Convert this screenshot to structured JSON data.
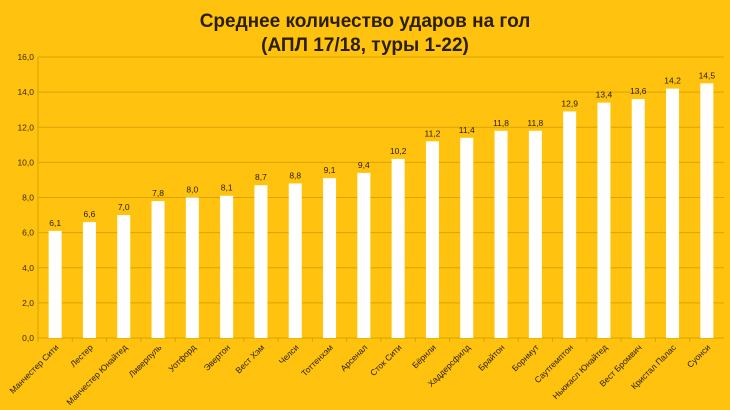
{
  "chart_data": {
    "type": "bar",
    "title": "Среднее количество ударов на гол",
    "subtitle": "(АПЛ 17/18, туры 1-22)",
    "categories": [
      "Манчестер Сити",
      "Лестер",
      "Манчестер Юнайтед",
      "Ливерпуль",
      "Уотфорд",
      "Эвертон",
      "Вест Хэм",
      "Челси",
      "Тоттенхэм",
      "Арсенал",
      "Сток Сити",
      "Бёрнли",
      "Хаддерсфилд",
      "Брайтон",
      "Борнмут",
      "Саутгемптон",
      "Ньюкасл Юнайтед",
      "Вест Бромвич",
      "Кристал Палас",
      "Суонси"
    ],
    "values": [
      6.1,
      6.6,
      7.0,
      7.8,
      8.0,
      8.1,
      8.7,
      8.8,
      9.1,
      9.4,
      10.2,
      11.2,
      11.4,
      11.8,
      11.8,
      12.9,
      13.4,
      13.6,
      14.2,
      14.5
    ],
    "ylim": [
      0,
      16
    ],
    "yticks": [
      "0,0",
      "2,0",
      "4,0",
      "6,0",
      "8,0",
      "10,0",
      "12,0",
      "14,0",
      "16,0"
    ],
    "grid": true,
    "colors": {
      "background": "#FFC20E",
      "bar": "#FFFFFF",
      "grid": "#D9A400"
    }
  }
}
